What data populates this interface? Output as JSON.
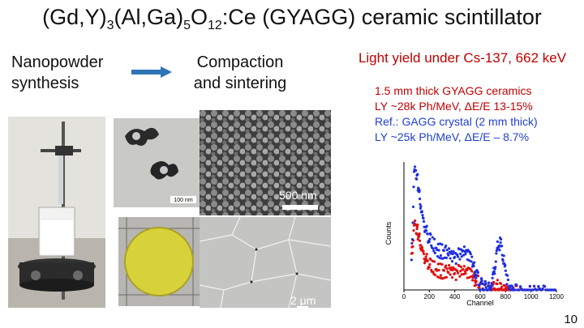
{
  "title": {
    "prefix": "(Gd,Y)",
    "sub1": "3",
    "mid1": "(Al,Ga)",
    "sub2": "5",
    "mid2": "O",
    "sub3": "12",
    "suffix": ":Ce (GYAGG) ceramic scintillator"
  },
  "steps": {
    "step1": [
      "Nanopowder",
      "synthesis"
    ],
    "step2": [
      "Compaction",
      "and sintering"
    ]
  },
  "light_yield": {
    "heading": "Light yield under Cs-137, 662 keV",
    "lines": [
      "1.5 mm thick GYAGG ceramics",
      "LY ~28k Ph/MeV,  ΔE/E 13-15%",
      "Ref.: GAGG crystal (2 mm thick)",
      "LY ~25k Ph/MeV,  ΔE/E – 8.7%"
    ]
  },
  "images": {
    "tem_scale": "100 nm",
    "sem_scale": "500 nm",
    "grain_scale": "2 μm"
  },
  "chart_data": {
    "type": "scatter",
    "xlabel": "Channel",
    "ylabel": "Counts",
    "x_ticks": [
      "0",
      "200",
      "400",
      "600",
      "800",
      "1000",
      "1200"
    ],
    "xlim": [
      0,
      1200
    ],
    "series": [
      {
        "color": "#1f2fe0",
        "x": [
          60,
          80,
          100,
          115,
          130,
          150,
          170,
          190,
          210,
          240,
          270,
          300,
          330,
          360,
          390,
          420,
          450,
          480,
          510,
          540,
          560,
          580,
          600,
          620,
          640,
          660,
          680,
          700,
          720,
          740,
          760,
          780,
          800,
          830,
          860,
          900,
          950,
          1000,
          1050,
          1100,
          1150,
          1200
        ],
        "y": [
          0.25,
          0.98,
          0.96,
          0.85,
          0.72,
          0.6,
          0.52,
          0.46,
          0.42,
          0.38,
          0.35,
          0.34,
          0.33,
          0.3,
          0.29,
          0.3,
          0.32,
          0.33,
          0.3,
          0.24,
          0.18,
          0.12,
          0.08,
          0.05,
          0.04,
          0.03,
          0.05,
          0.12,
          0.26,
          0.38,
          0.4,
          0.3,
          0.15,
          0.05,
          0.02,
          0.01,
          0.01,
          0.005,
          0.005,
          0.003,
          0.002,
          0.002
        ]
      },
      {
        "color": "#e01010",
        "x": [
          60,
          80,
          100,
          115,
          130,
          150,
          170,
          190,
          210,
          240,
          270,
          300,
          330,
          360,
          390,
          420,
          450,
          480,
          510,
          540,
          560,
          580,
          600,
          620,
          640,
          660,
          680,
          700,
          720,
          740,
          760,
          780,
          800,
          830,
          860,
          900,
          950,
          1000,
          1050,
          1100,
          1150,
          1200
        ],
        "y": [
          0.3,
          0.55,
          0.52,
          0.48,
          0.4,
          0.33,
          0.28,
          0.25,
          0.22,
          0.2,
          0.19,
          0.18,
          0.17,
          0.17,
          0.16,
          0.17,
          0.18,
          0.17,
          0.16,
          0.13,
          0.11,
          0.09,
          0.07,
          0.05,
          0.04,
          0.035,
          0.04,
          0.05,
          0.06,
          0.05,
          0.03,
          0.015,
          0.01,
          0.008,
          0.006,
          0.005,
          0.004,
          0.004,
          0.003,
          0.003,
          0.002,
          0.002
        ]
      }
    ]
  },
  "page_number": "10"
}
